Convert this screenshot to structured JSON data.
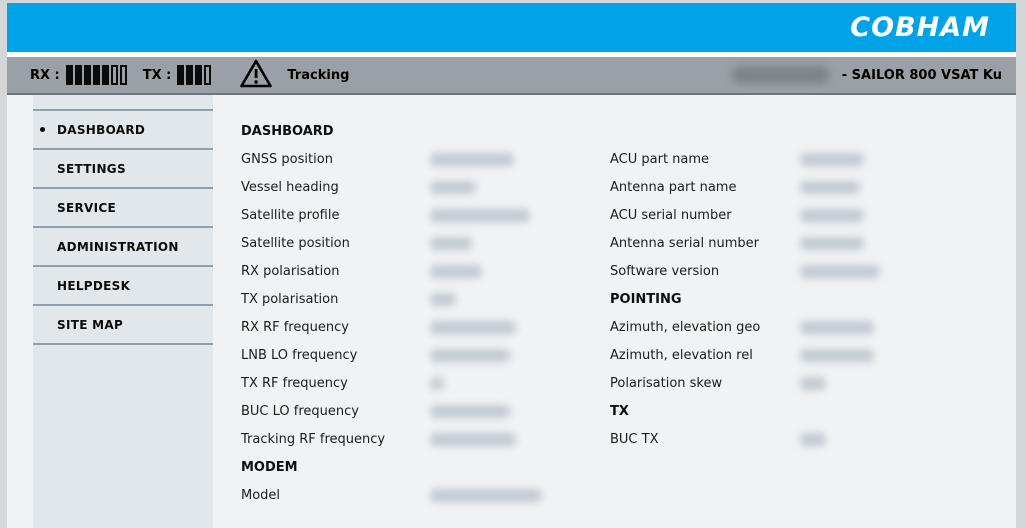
{
  "header": {
    "logo_text": "COBHAM",
    "brand_color": "#00a3e8"
  },
  "statusbar": {
    "bg_color": "#9aa0a5",
    "rx": {
      "label": "RX :",
      "bars_total": 7,
      "bars_filled": 5
    },
    "tx": {
      "label": "TX :",
      "bars_total": 4,
      "bars_filled": 3
    },
    "warning_icon": "warning-triangle-icon",
    "status_text": "Tracking",
    "device_name_redacted": true,
    "device_suffix": "- SAILOR 800 VSAT Ku"
  },
  "sidebar": {
    "items": [
      {
        "label": "DASHBOARD",
        "active": true
      },
      {
        "label": "SETTINGS",
        "active": false
      },
      {
        "label": "SERVICE",
        "active": false
      },
      {
        "label": "ADMINISTRATION",
        "active": false
      },
      {
        "label": "HELPDESK",
        "active": false
      },
      {
        "label": "SITE MAP",
        "active": false
      }
    ]
  },
  "content": {
    "left_column": {
      "sections": [
        {
          "title": "DASHBOARD",
          "rows": [
            {
              "label": "GNSS position",
              "redacted": true,
              "blur_width": 84
            },
            {
              "label": "Vessel heading",
              "redacted": true,
              "blur_width": 46
            },
            {
              "label": "Satellite profile",
              "redacted": true,
              "blur_width": 100
            },
            {
              "label": "Satellite position",
              "redacted": true,
              "blur_width": 42
            },
            {
              "label": "RX polarisation",
              "redacted": true,
              "blur_width": 52
            },
            {
              "label": "TX polarisation",
              "redacted": true,
              "blur_width": 26
            },
            {
              "label": "RX RF frequency",
              "redacted": true,
              "blur_width": 86
            },
            {
              "label": "LNB LO frequency",
              "redacted": true,
              "blur_width": 80
            },
            {
              "label": "TX RF frequency",
              "redacted": true,
              "blur_width": 14
            },
            {
              "label": "BUC LO frequency",
              "redacted": true,
              "blur_width": 80
            },
            {
              "label": "Tracking RF frequency",
              "redacted": true,
              "blur_width": 86
            }
          ]
        },
        {
          "title": "MODEM",
          "rows": [
            {
              "label": "Model",
              "redacted": true,
              "blur_width": 112
            }
          ]
        }
      ]
    },
    "right_column": {
      "sections": [
        {
          "title": "",
          "rows": [
            {
              "label": "ACU part name",
              "redacted": true,
              "blur_width": 64
            },
            {
              "label": "Antenna part name",
              "redacted": true,
              "blur_width": 60
            },
            {
              "label": "ACU serial number",
              "redacted": true,
              "blur_width": 64
            },
            {
              "label": "Antenna serial number",
              "redacted": true,
              "blur_width": 64
            },
            {
              "label": "Software version",
              "redacted": true,
              "blur_width": 80
            }
          ]
        },
        {
          "title": "POINTING",
          "rows": [
            {
              "label": "Azimuth, elevation geo",
              "redacted": true,
              "blur_width": 74
            },
            {
              "label": "Azimuth, elevation rel",
              "redacted": true,
              "blur_width": 74
            },
            {
              "label": "Polarisation skew",
              "redacted": true,
              "blur_width": 26
            }
          ]
        },
        {
          "title": "TX",
          "rows": [
            {
              "label": "BUC TX",
              "redacted": true,
              "blur_width": 26
            }
          ]
        }
      ]
    }
  }
}
